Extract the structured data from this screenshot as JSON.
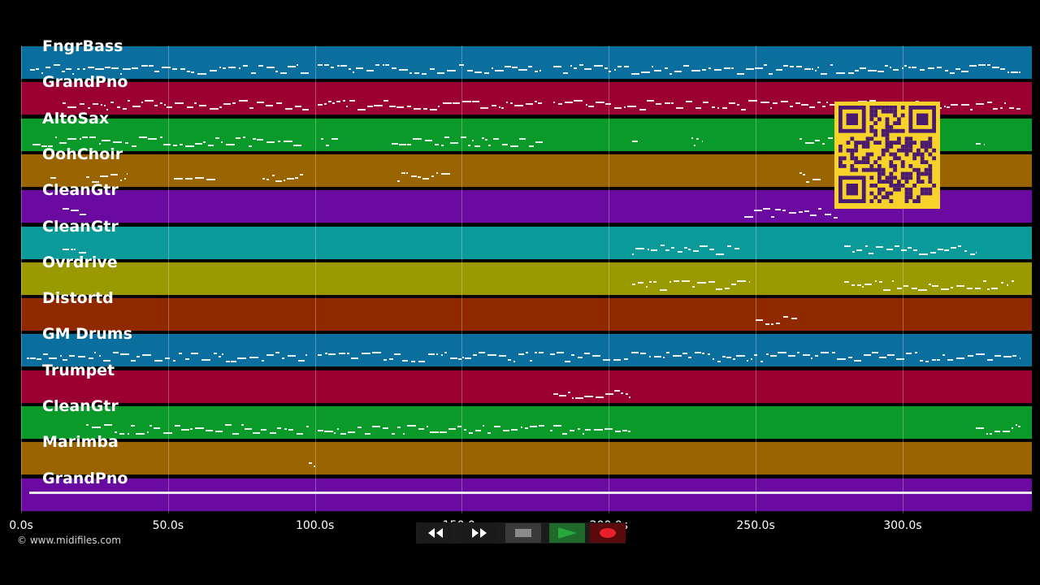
{
  "tracks": [
    {
      "name": "FngrBass",
      "color": "#0a6e9e"
    },
    {
      "name": "GrandPno",
      "color": "#9a0032"
    },
    {
      "name": "AltoSax",
      "color": "#0a9a2a"
    },
    {
      "name": "OohChoir",
      "color": "#9a6400"
    },
    {
      "name": "CleanGtr",
      "color": "#6a0aa0"
    },
    {
      "name": "CleanGtr",
      "color": "#0a9a9a"
    },
    {
      "name": "Ovrdrive",
      "color": "#9a9a00"
    },
    {
      "name": "Distortd",
      "color": "#902800"
    },
    {
      "name": "GM Drums",
      "color": "#0a6e9e"
    },
    {
      "name": "Trumpet",
      "color": "#9a0032"
    },
    {
      "name": "CleanGtr",
      "color": "#0a9a2a"
    },
    {
      "name": "Marimba",
      "color": "#9a6400"
    },
    {
      "name": "GrandPno",
      "color": "#6a0aa0"
    }
  ],
  "timeline": {
    "max_seconds": 344,
    "ticks": [
      {
        "seconds": 0,
        "label": "0.0s"
      },
      {
        "seconds": 50,
        "label": "50.0s"
      },
      {
        "seconds": 100,
        "label": "100.0s"
      },
      {
        "seconds": 150,
        "label": "150.0s"
      },
      {
        "seconds": 200,
        "label": "200.0s"
      },
      {
        "seconds": 250,
        "label": "250.0s"
      },
      {
        "seconds": 300,
        "label": "300.0s"
      }
    ]
  },
  "footer": {
    "copyright": "© www.midifiles.com"
  },
  "controls": {
    "rewind_icon": "rewind-icon",
    "fast_forward_icon": "fast-forward-icon",
    "stop_icon": "stop-icon",
    "play_icon": "play-icon",
    "record_icon": "record-icon",
    "colors": {
      "play": "#27a83a",
      "record": "#e8202a",
      "stop": "#8a8a8a"
    }
  },
  "qr_code": {
    "colors": {
      "background": "#f7d22a",
      "modules": "#4a1a6e"
    }
  }
}
